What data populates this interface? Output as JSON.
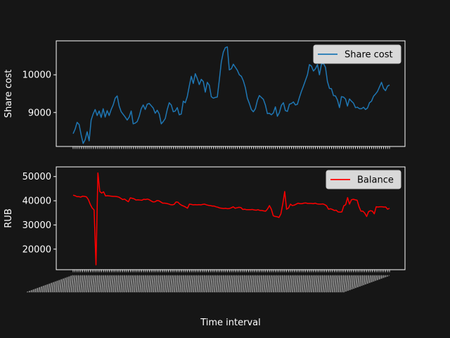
{
  "chart_data": [
    {
      "type": "line",
      "title": "",
      "xlabel": "",
      "ylabel": "Share cost",
      "ylim": [
        8100,
        10900
      ],
      "yticks": [
        9000,
        10000
      ],
      "grid": false,
      "legend_placement": "top-right",
      "series": [
        {
          "name": "Share cost",
          "color": "#1f77b4",
          "values": [
            8440,
            8560,
            8740,
            8680,
            8410,
            8180,
            8280,
            8490,
            8250,
            8800,
            8960,
            9080,
            8920,
            9040,
            8870,
            9100,
            8880,
            9050,
            8920,
            9080,
            9200,
            9380,
            9440,
            9170,
            9020,
            8950,
            8880,
            8800,
            8880,
            9040,
            8700,
            8720,
            8760,
            8900,
            9100,
            9200,
            9080,
            9220,
            9240,
            9180,
            9120,
            8980,
            9060,
            8960,
            8700,
            8760,
            8840,
            9080,
            9260,
            9200,
            9020,
            9040,
            9130,
            8940,
            8960,
            9300,
            9260,
            9420,
            9700,
            9960,
            9770,
            10030,
            9900,
            9740,
            9880,
            9820,
            9540,
            9800,
            9720,
            9420,
            9380,
            9400,
            9410,
            9860,
            10340,
            10600,
            10720,
            10740,
            10130,
            10160,
            10280,
            10200,
            10120,
            10000,
            9960,
            9840,
            9660,
            9380,
            9240,
            9080,
            9020,
            9100,
            9320,
            9450,
            9400,
            9350,
            9200,
            8970,
            8980,
            8940,
            8990,
            9150,
            8900,
            9000,
            9190,
            9260,
            9050,
            9030,
            9220,
            9240,
            9280,
            9200,
            9220,
            9400,
            9560,
            9700,
            9850,
            10000,
            10270,
            10230,
            10100,
            10160,
            10270,
            10000,
            10280,
            10300,
            10200,
            9820,
            9640,
            9630,
            9450,
            9440,
            9330,
            9130,
            9420,
            9410,
            9360,
            9170,
            9360,
            9300,
            9250,
            9130,
            9140,
            9100,
            9100,
            9140,
            9080,
            9120,
            9260,
            9300,
            9430,
            9490,
            9560,
            9680,
            9800,
            9640,
            9580,
            9700,
            9730
          ]
        }
      ]
    },
    {
      "type": "line",
      "title": "",
      "xlabel": "Time interval",
      "ylabel": "RUB",
      "ylim": [
        11500,
        54000
      ],
      "yticks": [
        20000,
        30000,
        40000,
        50000
      ],
      "grid": false,
      "legend_placement": "top-right",
      "tick_label_note": "overlapping rotated time tick labels (illegible)",
      "series": [
        {
          "name": "Balance",
          "color": "#ff0000",
          "values": [
            42300,
            42100,
            41700,
            41700,
            41500,
            41900,
            41800,
            41600,
            40500,
            38500,
            37000,
            36200,
            13500,
            51500,
            43800,
            43200,
            43700,
            42000,
            42100,
            42000,
            41900,
            41800,
            41800,
            41700,
            41500,
            41000,
            40500,
            40700,
            40100,
            39600,
            41200,
            41000,
            40800,
            40300,
            40400,
            40300,
            40200,
            40600,
            40500,
            40700,
            40400,
            39900,
            39500,
            39600,
            40100,
            40000,
            39500,
            39000,
            39000,
            38900,
            38700,
            38400,
            38300,
            38500,
            39500,
            39400,
            38600,
            38100,
            37800,
            37400,
            36900,
            38600,
            38500,
            38300,
            38400,
            38300,
            38400,
            38300,
            38500,
            38600,
            38300,
            38100,
            38000,
            37800,
            37800,
            37500,
            37300,
            37000,
            36900,
            36800,
            36900,
            36700,
            36800,
            37100,
            37500,
            36900,
            37100,
            37300,
            37200,
            36400,
            36500,
            36300,
            36300,
            36300,
            36400,
            36200,
            36100,
            36300,
            36000,
            36000,
            35800,
            35700,
            36600,
            38000,
            36500,
            33800,
            33500,
            33400,
            33100,
            34600,
            38700,
            43800,
            36500,
            37000,
            38600,
            38000,
            38200,
            38600,
            39000,
            38800,
            38800,
            39000,
            39100,
            38900,
            38900,
            38900,
            38800,
            39000,
            38700,
            38600,
            38600,
            38700,
            38400,
            37900,
            36500,
            36700,
            36400,
            36000,
            36100,
            35400,
            35300,
            35400,
            37900,
            38400,
            41300,
            38600,
            40400,
            40600,
            40400,
            40200,
            37500,
            35700,
            35700,
            34900,
            33500,
            35500,
            35900,
            35700,
            34600,
            37500,
            37400,
            37500,
            37500,
            37400,
            37400,
            36500,
            36900
          ]
        }
      ]
    }
  ]
}
